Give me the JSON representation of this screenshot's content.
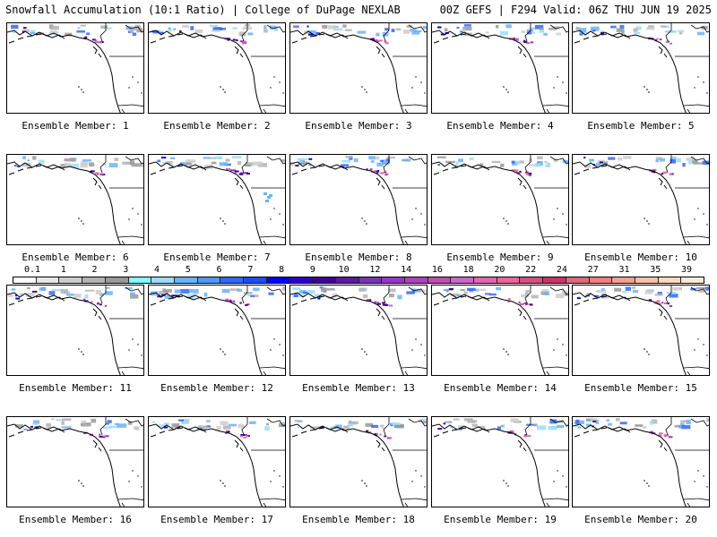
{
  "header": {
    "left_title": "Snowfall Accumulation (10:1 Ratio) | College of DuPage NEXLAB",
    "right_title": "00Z GEFS | F294 Valid: 06Z THU JUN 19 2025"
  },
  "panels": [
    {
      "label": "Ensemble Member: 1"
    },
    {
      "label": "Ensemble Member: 2"
    },
    {
      "label": "Ensemble Member: 3"
    },
    {
      "label": "Ensemble Member: 4"
    },
    {
      "label": "Ensemble Member: 5"
    },
    {
      "label": "Ensemble Member: 6"
    },
    {
      "label": "Ensemble Member: 7"
    },
    {
      "label": "Ensemble Member: 8"
    },
    {
      "label": "Ensemble Member: 9"
    },
    {
      "label": "Ensemble Member: 10"
    },
    {
      "label": "Ensemble Member: 11"
    },
    {
      "label": "Ensemble Member: 12"
    },
    {
      "label": "Ensemble Member: 13"
    },
    {
      "label": "Ensemble Member: 14"
    },
    {
      "label": "Ensemble Member: 15"
    },
    {
      "label": "Ensemble Member: 16"
    },
    {
      "label": "Ensemble Member: 17"
    },
    {
      "label": "Ensemble Member: 18"
    },
    {
      "label": "Ensemble Member: 19"
    },
    {
      "label": "Ensemble Member: 20"
    }
  ],
  "colorbar": {
    "labels": [
      "0.1",
      "1",
      "2",
      "3",
      "4",
      "5",
      "6",
      "7",
      "8",
      "9",
      "10",
      "12",
      "14",
      "16",
      "18",
      "20",
      "22",
      "24",
      "27",
      "31",
      "35",
      "39"
    ],
    "colors": [
      "#ffffff",
      "#e6e6e6",
      "#cccccc",
      "#b3b3b3",
      "#999999",
      "#7fffff",
      "#99ddff",
      "#66b3ff",
      "#4d99ff",
      "#3366ff",
      "#1a4dff",
      "#0000ff",
      "#2a00cc",
      "#400099",
      "#5c1aa3",
      "#7a33b3",
      "#9933cc",
      "#b040c0",
      "#c04db3",
      "#cc66cc",
      "#e066b3",
      "#ee6699",
      "#d94d80",
      "#cc3366",
      "#e06680",
      "#f08080",
      "#f4a090",
      "#f8c0a8",
      "#fbd8c0",
      "#fde8d8"
    ]
  }
}
